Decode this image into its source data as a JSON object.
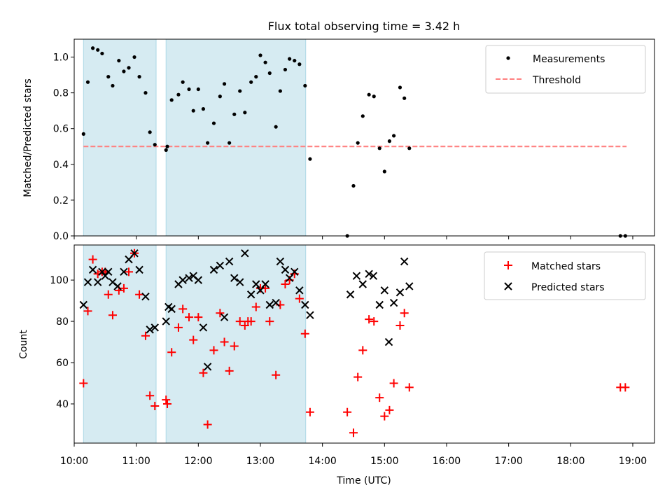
{
  "chart_data": {
    "title": "Flux total observing time = 3.42 h",
    "xlabel": "Time (UTC)",
    "xlim": [
      10.0,
      19.35
    ],
    "xticks": [
      10,
      11,
      12,
      13,
      14,
      15,
      16,
      17,
      18,
      19
    ],
    "xtick_labels": [
      "10:00",
      "11:00",
      "12:00",
      "13:00",
      "14:00",
      "15:00",
      "16:00",
      "17:00",
      "18:00",
      "19:00"
    ],
    "colors": {
      "matched": "#ff0000",
      "predicted": "#000000",
      "threshold": "#ff7f7f",
      "span": "#add8e6"
    },
    "shaded_intervals": [
      [
        10.15,
        11.32
      ],
      [
        11.48,
        13.73
      ]
    ],
    "top": {
      "type": "scatter",
      "ylabel": "Matched/Predicted stars",
      "ylim": [
        0.0,
        1.1
      ],
      "yticks": [
        0.0,
        0.2,
        0.4,
        0.6,
        0.8,
        1.0
      ],
      "ytick_labels": [
        "0.0",
        "0.2",
        "0.4",
        "0.6",
        "0.8",
        "1.0"
      ],
      "legend": {
        "position": "upper right",
        "measurements": "Measurements",
        "threshold": "Threshold"
      },
      "threshold": {
        "value": 0.5,
        "x_range": [
          10.15,
          18.9
        ]
      },
      "series": [
        {
          "name": "Measurements",
          "x": [
            10.15,
            10.22,
            10.3,
            10.38,
            10.45,
            10.55,
            10.62,
            10.72,
            10.8,
            10.88,
            10.97,
            11.05,
            11.15,
            11.22,
            11.3,
            11.48,
            11.5,
            11.57,
            11.68,
            11.75,
            11.85,
            11.92,
            12.0,
            12.08,
            12.15,
            12.25,
            12.35,
            12.42,
            12.5,
            12.58,
            12.67,
            12.75,
            12.85,
            12.93,
            13.0,
            13.08,
            13.15,
            13.25,
            13.32,
            13.4,
            13.47,
            13.55,
            13.63,
            13.72,
            13.8,
            14.4,
            14.5,
            14.57,
            14.65,
            14.75,
            14.83,
            14.92,
            15.0,
            15.08,
            15.15,
            15.25,
            15.32,
            15.4,
            18.8,
            18.88
          ],
          "y": [
            0.57,
            0.86,
            1.05,
            1.04,
            1.02,
            0.89,
            0.84,
            0.98,
            0.92,
            0.94,
            1.0,
            0.89,
            0.8,
            0.58,
            0.51,
            0.48,
            0.5,
            0.76,
            0.79,
            0.86,
            0.82,
            0.7,
            0.82,
            0.71,
            0.52,
            0.63,
            0.78,
            0.85,
            0.52,
            0.68,
            0.81,
            0.69,
            0.86,
            0.89,
            1.01,
            0.97,
            0.91,
            0.61,
            0.81,
            0.93,
            0.99,
            0.98,
            0.96,
            0.84,
            0.43,
            0.0,
            0.28,
            0.52,
            0.67,
            0.79,
            0.78,
            0.49,
            0.36,
            0.53,
            0.56,
            0.83,
            0.77,
            0.49,
            0.0,
            0.0
          ]
        }
      ]
    },
    "bottom": {
      "type": "scatter",
      "ylabel": "Count",
      "ylim": [
        21,
        117
      ],
      "yticks": [
        40,
        60,
        80,
        100
      ],
      "ytick_labels": [
        "40",
        "60",
        "80",
        "100"
      ],
      "legend": {
        "position": "upper right",
        "matched": "Matched stars",
        "predicted": "Predicted stars"
      },
      "series": [
        {
          "name": "Matched stars",
          "marker": "+",
          "x": [
            10.15,
            10.22,
            10.3,
            10.38,
            10.45,
            10.5,
            10.55,
            10.62,
            10.72,
            10.8,
            10.88,
            10.97,
            11.05,
            11.15,
            11.22,
            11.3,
            11.48,
            11.5,
            11.57,
            11.68,
            11.75,
            11.85,
            11.92,
            12.0,
            12.08,
            12.15,
            12.25,
            12.35,
            12.42,
            12.5,
            12.58,
            12.67,
            12.75,
            12.8,
            12.85,
            12.93,
            13.0,
            13.08,
            13.15,
            13.25,
            13.32,
            13.4,
            13.47,
            13.55,
            13.63,
            13.72,
            13.8,
            14.4,
            14.5,
            14.57,
            14.65,
            14.75,
            14.83,
            14.92,
            15.0,
            15.08,
            15.15,
            15.25,
            15.32,
            15.4,
            18.8,
            18.88
          ],
          "y": [
            50,
            85,
            110,
            103,
            104,
            104,
            93,
            83,
            95,
            96,
            104,
            113,
            93,
            73,
            44,
            39,
            42,
            40,
            65,
            77,
            86,
            82,
            71,
            82,
            55,
            30,
            66,
            84,
            70,
            56,
            68,
            80,
            78,
            80,
            80,
            87,
            96,
            96,
            80,
            54,
            88,
            98,
            100,
            103,
            91,
            74,
            36,
            36,
            26,
            53,
            66,
            81,
            80,
            43,
            34,
            37,
            50,
            78,
            84,
            48,
            48,
            48
          ]
        },
        {
          "name": "Predicted stars",
          "marker": "x",
          "x": [
            10.15,
            10.22,
            10.3,
            10.38,
            10.45,
            10.5,
            10.55,
            10.62,
            10.7,
            10.8,
            10.88,
            10.97,
            11.05,
            11.15,
            11.22,
            11.3,
            11.48,
            11.52,
            11.57,
            11.68,
            11.75,
            11.85,
            11.92,
            12.0,
            12.08,
            12.15,
            12.25,
            12.35,
            12.42,
            12.5,
            12.58,
            12.67,
            12.75,
            12.85,
            12.93,
            13.0,
            13.08,
            13.15,
            13.25,
            13.32,
            13.4,
            13.47,
            13.55,
            13.63,
            13.72,
            13.8,
            14.45,
            14.55,
            14.65,
            14.75,
            14.82,
            14.92,
            15.0,
            15.07,
            15.15,
            15.25,
            15.32,
            15.4
          ],
          "y": [
            88,
            99,
            105,
            99,
            104,
            102,
            104,
            99,
            97,
            104,
            110,
            113,
            105,
            92,
            76,
            77,
            80,
            87,
            86,
            98,
            100,
            101,
            102,
            100,
            77,
            58,
            105,
            107,
            82,
            109,
            101,
            99,
            113,
            93,
            98,
            95,
            98,
            88,
            89,
            109,
            105,
            101,
            104,
            95,
            88,
            83,
            93,
            102,
            98,
            103,
            102,
            88,
            95,
            70,
            89,
            94,
            109,
            97
          ]
        }
      ]
    }
  }
}
